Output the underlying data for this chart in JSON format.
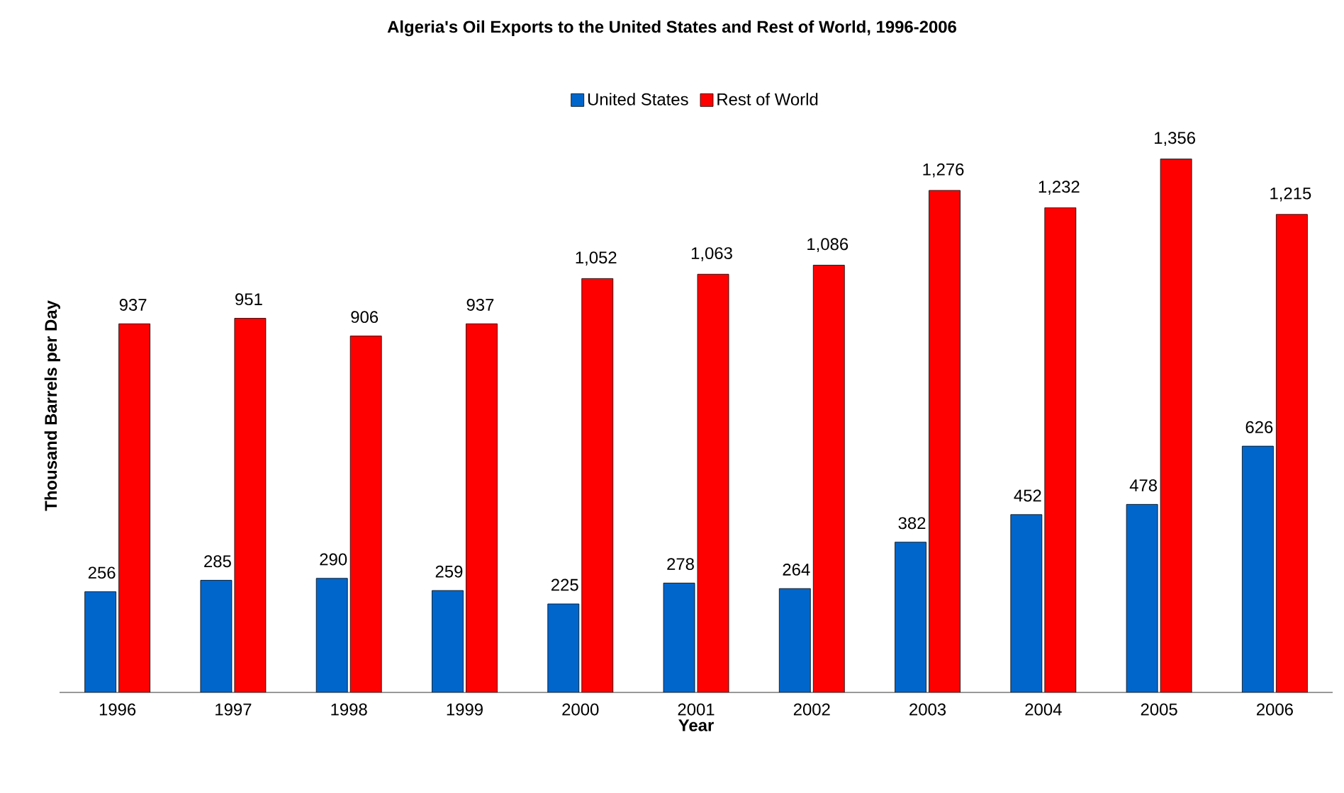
{
  "chart_data": {
    "type": "bar",
    "title": "Algeria's Oil Exports to the United States and Rest of World, 1996-2006",
    "xlabel": "Year",
    "ylabel": "Thousand Barrels per Day",
    "categories": [
      "1996",
      "1997",
      "1998",
      "1999",
      "2000",
      "2001",
      "2002",
      "2003",
      "2004",
      "2005",
      "2006"
    ],
    "series": [
      {
        "name": "United States",
        "color": "#0066cc",
        "values": [
          256,
          285,
          290,
          259,
          225,
          278,
          264,
          382,
          452,
          478,
          626
        ],
        "value_labels": [
          "256",
          "285",
          "290",
          "259",
          "225",
          "278",
          "264",
          "382",
          "452",
          "478",
          "626"
        ]
      },
      {
        "name": "Rest of World",
        "color": "#ff0000",
        "values": [
          937,
          951,
          906,
          937,
          1052,
          1063,
          1086,
          1276,
          1232,
          1356,
          1215
        ],
        "value_labels": [
          "937",
          "951",
          "906",
          "937",
          "1,052",
          "1,063",
          "1,086",
          "1,276",
          "1,232",
          "1,356",
          "1,215"
        ]
      }
    ],
    "legend": "top"
  }
}
